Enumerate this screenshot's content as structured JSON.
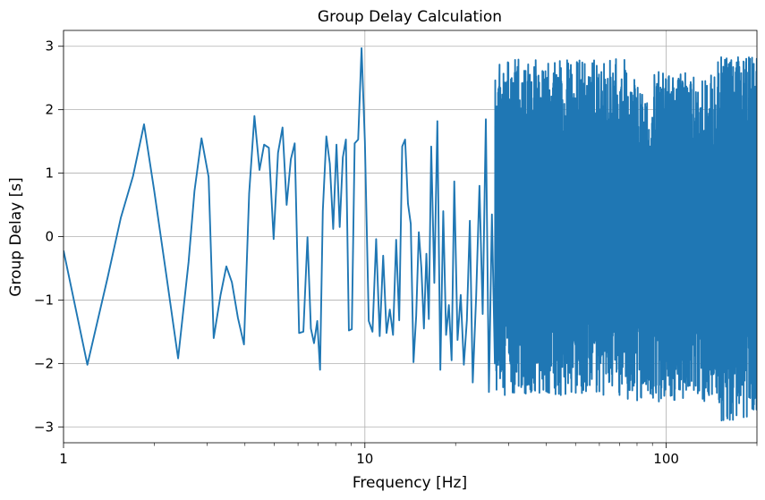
{
  "chart_data": {
    "type": "line",
    "title": "Group Delay Calculation",
    "xlabel": "Frequency [Hz]",
    "ylabel": "Group Delay [s]",
    "xscale": "log",
    "xlim": [
      1,
      200
    ],
    "ylim": [
      -3.25,
      3.25
    ],
    "grid": true,
    "x_ticks": [
      1,
      10,
      100
    ],
    "x_tick_labels": [
      "1",
      "10",
      "100"
    ],
    "y_ticks": [
      -3,
      -2,
      -1,
      0,
      1,
      2,
      3
    ],
    "y_tick_labels": [
      "−3",
      "−2",
      "−1",
      "0",
      "1",
      "2",
      "3"
    ],
    "line_color": "#1f77b4",
    "series": [
      {
        "x": [
          1.0,
          1.2,
          1.4,
          1.55,
          1.7,
          1.85,
          2.0,
          2.2,
          2.4,
          2.6,
          2.72,
          2.87,
          3.03,
          3.15,
          3.32,
          3.47,
          3.62,
          3.79,
          3.97,
          4.13,
          4.3,
          4.47,
          4.63,
          4.8,
          4.98,
          5.15,
          5.33,
          5.5,
          5.68,
          5.85,
          6.05,
          6.25,
          6.45,
          6.62,
          6.78,
          6.95,
          7.1,
          7.25,
          7.45,
          7.65,
          7.85,
          8.05,
          8.25,
          8.45,
          8.65,
          8.85,
          9.05,
          9.25,
          9.5,
          9.75,
          10.0,
          10.3,
          10.6,
          10.9,
          11.2,
          11.5,
          11.8,
          12.1,
          12.4,
          12.7,
          13.0,
          13.3,
          13.6,
          13.9,
          14.2,
          14.5,
          14.8,
          15.1,
          15.4,
          15.7,
          16.0,
          16.3,
          16.6,
          17.0,
          17.4,
          17.8,
          18.2,
          18.6,
          19.0,
          19.4,
          19.8,
          20.3,
          20.8,
          21.3,
          21.8,
          22.3,
          22.8,
          23.4,
          24.0,
          24.6,
          25.2,
          25.8,
          26.4,
          27.0
        ],
        "y": [
          -0.22,
          -2.02,
          -0.65,
          0.3,
          0.95,
          1.77,
          0.72,
          -0.65,
          -1.92,
          -0.4,
          0.72,
          1.55,
          0.94,
          -1.6,
          -0.92,
          -0.47,
          -0.72,
          -1.28,
          -1.7,
          0.68,
          1.9,
          1.05,
          1.45,
          1.4,
          -0.04,
          1.32,
          1.72,
          0.5,
          1.22,
          1.47,
          -1.52,
          -1.5,
          -0.01,
          -1.45,
          -1.68,
          -1.33,
          -2.1,
          0.4,
          1.58,
          1.15,
          0.12,
          1.45,
          0.15,
          1.25,
          1.53,
          -1.48,
          -1.46,
          1.47,
          1.53,
          2.97,
          1.5,
          -1.33,
          -1.5,
          -0.04,
          -1.57,
          -0.3,
          -1.52,
          -1.15,
          -1.55,
          -0.05,
          -1.32,
          1.42,
          1.53,
          0.52,
          0.2,
          -1.98,
          -1.25,
          0.07,
          -0.5,
          -1.45,
          -0.27,
          -1.3,
          1.42,
          -0.73,
          1.82,
          -2.1,
          0.4,
          -1.55,
          -1.08,
          -1.95,
          0.87,
          -1.63,
          -0.92,
          -2.02,
          -1.32,
          0.25,
          -2.3,
          -0.95,
          0.8,
          -1.22,
          1.85,
          -2.45,
          0.35,
          -2.0
        ]
      }
    ],
    "dense_region": {
      "x_start": 27.0,
      "x_end": 200,
      "y_band_low": [
        -2.5,
        -2.6,
        -2.9
      ],
      "y_band_high": [
        2.8,
        2.6,
        2.85
      ]
    }
  }
}
